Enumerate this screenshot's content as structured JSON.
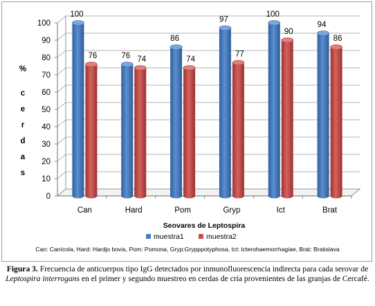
{
  "chart_data": {
    "type": "bar",
    "categories": [
      "Can",
      "Hard",
      "Pom",
      "Gryp",
      "Ict",
      "Brat"
    ],
    "series": [
      {
        "name": "muestra1",
        "values": [
          100,
          76,
          86,
          97,
          100,
          94
        ],
        "color": "#4a7ebb"
      },
      {
        "name": "muestra2",
        "values": [
          76,
          74,
          74,
          77,
          90,
          86
        ],
        "color": "#c0504d"
      }
    ],
    "ylim": [
      0,
      100
    ],
    "yticks": [
      0,
      10,
      20,
      30,
      40,
      50,
      60,
      70,
      80,
      90,
      100
    ],
    "xlabel": "Seovares de Leptospira",
    "ylabel": "% cerdas",
    "ylabel_chars": [
      "%",
      "c",
      "e",
      "r",
      "d",
      "a",
      "s"
    ],
    "grid": true,
    "three_d": true,
    "legend_position": "bottom",
    "data_labels": true
  },
  "footnote": "Can: Canícola, Hard: Hardjo bovis, Pom: Pomona, Gryp:Grypppotyphosa, Ict: Icterohaemorrhagiae, Brat: Bratislava",
  "caption": {
    "label": "Figura 3.",
    "text_1": " Frecuencia de anticuerpos tipo IgG detectados por inmunofluorescencia indirecta para cada serovar de ",
    "species": "Leptospira interrogans",
    "text_2": " en el primer y segundo muestreo en cerdas de cría provenientes de las granjas de Cercafé."
  }
}
